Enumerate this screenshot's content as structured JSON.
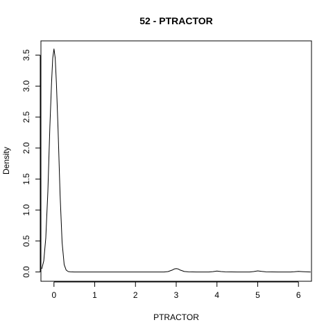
{
  "chart_data": {
    "type": "line",
    "title": "52 - PTRACTOR",
    "xlabel": "PTRACTOR",
    "ylabel": "Density",
    "xlim": [
      -0.32,
      6.32
    ],
    "ylim": [
      -0.15,
      3.73
    ],
    "x_ticks": [
      "0",
      "1",
      "2",
      "3",
      "4",
      "5",
      "6"
    ],
    "y_ticks": [
      "0.0",
      "0.5",
      "1.0",
      "1.5",
      "2.0",
      "2.5",
      "3.0",
      "3.5"
    ],
    "grid": false,
    "legend": "none",
    "series": [
      {
        "x": [
          -0.3,
          -0.25,
          -0.2,
          -0.15,
          -0.1,
          -0.06,
          -0.03,
          0.0,
          0.03,
          0.06,
          0.1,
          0.15,
          0.2,
          0.25,
          0.3,
          0.35,
          0.4,
          0.5,
          1.0,
          2.0,
          2.7,
          2.8,
          2.9,
          2.95,
          3.0,
          3.05,
          3.1,
          3.2,
          3.3,
          3.5,
          3.8,
          3.9,
          4.0,
          4.1,
          4.2,
          4.5,
          4.8,
          4.9,
          5.0,
          5.1,
          5.2,
          5.5,
          5.8,
          5.9,
          6.0,
          6.1,
          6.2,
          6.3
        ],
        "values": [
          0.05,
          0.18,
          0.55,
          1.3,
          2.35,
          3.05,
          3.45,
          3.6,
          3.45,
          3.05,
          2.3,
          1.25,
          0.48,
          0.12,
          0.03,
          0.006,
          0.002,
          0.0,
          0.0,
          0.0,
          0.0,
          0.006,
          0.03,
          0.048,
          0.055,
          0.048,
          0.03,
          0.008,
          0.002,
          0.0,
          0.0,
          0.005,
          0.015,
          0.007,
          0.002,
          0.0,
          0.0,
          0.006,
          0.018,
          0.009,
          0.002,
          0.0,
          0.0,
          0.003,
          0.01,
          0.005,
          0.002,
          0.0
        ]
      }
    ]
  }
}
